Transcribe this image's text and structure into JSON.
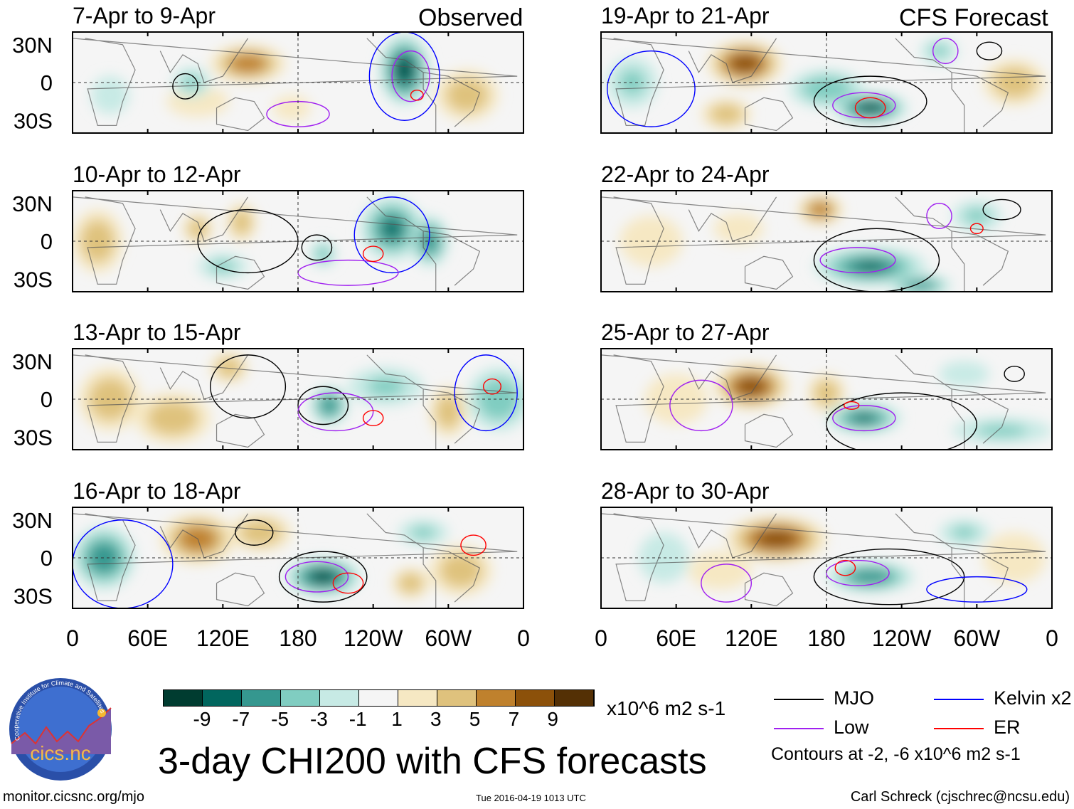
{
  "header": {
    "left_label": "Observed",
    "right_label": "CFS Forecast"
  },
  "lat_labels": [
    "30N",
    "0",
    "30S"
  ],
  "lon_labels": [
    "0",
    "60E",
    "120E",
    "180",
    "120W",
    "60W",
    "0"
  ],
  "colorbar": {
    "colors": [
      "#003c30",
      "#01665e",
      "#35978f",
      "#80cdc1",
      "#c7eae5",
      "#f5f5f5",
      "#f6e8c3",
      "#dfc27d",
      "#bf812d",
      "#8c510a",
      "#543005"
    ],
    "labels": [
      "-9",
      "-7",
      "-5",
      "-3",
      "-1",
      "1",
      "3",
      "5",
      "7",
      "9"
    ],
    "units": "x10^6 m2 s-1"
  },
  "legend": {
    "items": [
      {
        "label": "MJO",
        "color": "#000000"
      },
      {
        "label": "Kelvin x2",
        "color": "#0000ff"
      },
      {
        "label": "Low",
        "color": "#a020f0"
      },
      {
        "label": "ER",
        "color": "#ff0000"
      }
    ],
    "note": "Contours at -2, -6 x10^6 m2 s-1"
  },
  "title": "3-day CHI200 with CFS forecasts",
  "footer": {
    "url": "monitor.cicsnc.org/mjo",
    "timestamp": "Tue 2016-04-19 1013 UTC",
    "author": "Carl Schreck (cjschrec@ncsu.edu)"
  },
  "logo": {
    "text": "cics.nc",
    "ring": "Cooperative Institute for Climate and Satellites"
  },
  "chart_data": {
    "type": "heatmap",
    "variable": "CHI200 anomaly",
    "lon_range": [
      0,
      360
    ],
    "lat_range": [
      -40,
      40
    ],
    "panels": [
      {
        "title": "7-Apr to 9-Apr",
        "col": 0,
        "row": 0,
        "blobs": [
          [
            140,
            15,
            7,
            30,
            15
          ],
          [
            100,
            -15,
            3,
            25,
            12
          ],
          [
            175,
            -20,
            3,
            15,
            10
          ],
          [
            265,
            10,
            -9,
            20,
            28
          ],
          [
            315,
            -10,
            4,
            25,
            20
          ],
          [
            95,
            0,
            -3,
            15,
            12
          ],
          [
            30,
            -10,
            -2,
            15,
            15
          ]
        ],
        "contours": [
          [
            "kelvin",
            265,
            5,
            28,
            35
          ],
          [
            "low",
            270,
            5,
            15,
            20
          ],
          [
            "mjo",
            90,
            -3,
            10,
            10
          ],
          [
            "er",
            275,
            -10,
            5,
            4
          ],
          [
            "low",
            180,
            -25,
            25,
            10
          ]
        ]
      },
      {
        "title": "19-Apr to 21-Apr",
        "col": 1,
        "row": 0,
        "blobs": [
          [
            115,
            15,
            8,
            30,
            18
          ],
          [
            100,
            -25,
            4,
            20,
            12
          ],
          [
            180,
            -5,
            -4,
            30,
            15
          ],
          [
            215,
            -20,
            -9,
            30,
            12
          ],
          [
            25,
            0,
            -3,
            20,
            20
          ],
          [
            330,
            0,
            4,
            25,
            18
          ],
          [
            270,
            25,
            -3,
            15,
            10
          ]
        ],
        "contours": [
          [
            "mjo",
            215,
            -15,
            45,
            20
          ],
          [
            "low",
            210,
            -18,
            25,
            10
          ],
          [
            "er",
            215,
            -20,
            12,
            8
          ],
          [
            "kelvin",
            40,
            -5,
            35,
            30
          ],
          [
            "low",
            275,
            25,
            10,
            10
          ],
          [
            "mjo",
            310,
            25,
            10,
            7
          ]
        ]
      },
      {
        "title": "10-Apr to 12-Apr",
        "col": 0,
        "row": 1,
        "blobs": [
          [
            100,
            10,
            5,
            12,
            12
          ],
          [
            135,
            15,
            5,
            12,
            15
          ],
          [
            20,
            0,
            4,
            20,
            25
          ],
          [
            255,
            10,
            -7,
            25,
            25
          ],
          [
            285,
            0,
            -6,
            15,
            20
          ],
          [
            200,
            -10,
            -4,
            10,
            10
          ],
          [
            120,
            -20,
            -3,
            20,
            10
          ]
        ],
        "contours": [
          [
            "kelvin",
            255,
            5,
            30,
            30
          ],
          [
            "low",
            220,
            -25,
            40,
            10
          ],
          [
            "er",
            240,
            -10,
            8,
            6
          ],
          [
            "mjo",
            195,
            -5,
            12,
            10
          ],
          [
            "mjo",
            140,
            0,
            40,
            25
          ]
        ]
      },
      {
        "title": "22-Apr to 24-Apr",
        "col": 1,
        "row": 1,
        "blobs": [
          [
            175,
            25,
            7,
            18,
            12
          ],
          [
            40,
            0,
            3,
            25,
            20
          ],
          [
            215,
            -20,
            -7,
            45,
            15
          ],
          [
            255,
            -35,
            -6,
            25,
            8
          ],
          [
            300,
            20,
            -3,
            20,
            12
          ],
          [
            110,
            10,
            2,
            20,
            12
          ]
        ],
        "contours": [
          [
            "mjo",
            220,
            -15,
            50,
            25
          ],
          [
            "low",
            205,
            -15,
            30,
            10
          ],
          [
            "low",
            270,
            20,
            10,
            10
          ],
          [
            "er",
            300,
            10,
            5,
            4
          ],
          [
            "mjo",
            320,
            25,
            15,
            8
          ]
        ]
      },
      {
        "title": "13-Apr to 15-Apr",
        "col": 0,
        "row": 2,
        "blobs": [
          [
            30,
            0,
            4,
            25,
            25
          ],
          [
            80,
            -15,
            5,
            30,
            20
          ],
          [
            125,
            25,
            5,
            15,
            12
          ],
          [
            205,
            -5,
            -6,
            15,
            15
          ],
          [
            300,
            -10,
            4,
            15,
            20
          ],
          [
            340,
            0,
            -4,
            25,
            25
          ],
          [
            250,
            10,
            -3,
            30,
            15
          ]
        ],
        "contours": [
          [
            "mjo",
            200,
            -5,
            20,
            15
          ],
          [
            "low",
            210,
            -10,
            30,
            15
          ],
          [
            "er",
            240,
            -15,
            8,
            6
          ],
          [
            "er",
            335,
            10,
            7,
            6
          ],
          [
            "kelvin",
            330,
            5,
            25,
            30
          ],
          [
            "mjo",
            140,
            10,
            30,
            25
          ]
        ]
      },
      {
        "title": "25-Apr to 27-Apr",
        "col": 1,
        "row": 2,
        "blobs": [
          [
            120,
            10,
            9,
            30,
            18
          ],
          [
            180,
            5,
            5,
            15,
            15
          ],
          [
            210,
            -15,
            -7,
            30,
            12
          ],
          [
            60,
            0,
            3,
            25,
            20
          ],
          [
            320,
            -25,
            -3,
            40,
            10
          ],
          [
            290,
            20,
            -2,
            20,
            10
          ]
        ],
        "contours": [
          [
            "mjo",
            240,
            -20,
            60,
            25
          ],
          [
            "low",
            210,
            -15,
            25,
            10
          ],
          [
            "er",
            200,
            -5,
            6,
            3
          ],
          [
            "low",
            80,
            -5,
            25,
            20
          ],
          [
            "mjo",
            330,
            20,
            8,
            6
          ]
        ]
      },
      {
        "title": "16-Apr to 18-Apr",
        "col": 0,
        "row": 3,
        "blobs": [
          [
            25,
            0,
            -6,
            25,
            25
          ],
          [
            100,
            15,
            7,
            30,
            20
          ],
          [
            150,
            20,
            5,
            25,
            15
          ],
          [
            200,
            -15,
            -9,
            30,
            15
          ],
          [
            280,
            20,
            -3,
            20,
            10
          ],
          [
            310,
            -10,
            4,
            25,
            20
          ],
          [
            270,
            -20,
            4,
            15,
            12
          ]
        ],
        "contours": [
          [
            "mjo",
            200,
            -15,
            35,
            20
          ],
          [
            "low",
            195,
            -15,
            25,
            12
          ],
          [
            "er",
            220,
            -20,
            12,
            8
          ],
          [
            "mjo",
            145,
            20,
            15,
            10
          ],
          [
            "er",
            320,
            10,
            10,
            8
          ],
          [
            "kelvin",
            40,
            -5,
            40,
            35
          ]
        ]
      },
      {
        "title": "28-Apr to 30-Apr",
        "col": 1,
        "row": 3,
        "blobs": [
          [
            140,
            15,
            8,
            40,
            18
          ],
          [
            95,
            -10,
            3,
            25,
            15
          ],
          [
            215,
            -15,
            -6,
            35,
            12
          ],
          [
            50,
            0,
            -2,
            20,
            20
          ],
          [
            330,
            0,
            3,
            25,
            20
          ],
          [
            290,
            20,
            -3,
            20,
            10
          ]
        ],
        "contours": [
          [
            "mjo",
            230,
            -15,
            60,
            22
          ],
          [
            "low",
            205,
            -12,
            25,
            10
          ],
          [
            "er",
            195,
            -8,
            8,
            6
          ],
          [
            "low",
            100,
            -20,
            20,
            15
          ],
          [
            "kelvin",
            300,
            -25,
            40,
            10
          ]
        ]
      }
    ]
  }
}
